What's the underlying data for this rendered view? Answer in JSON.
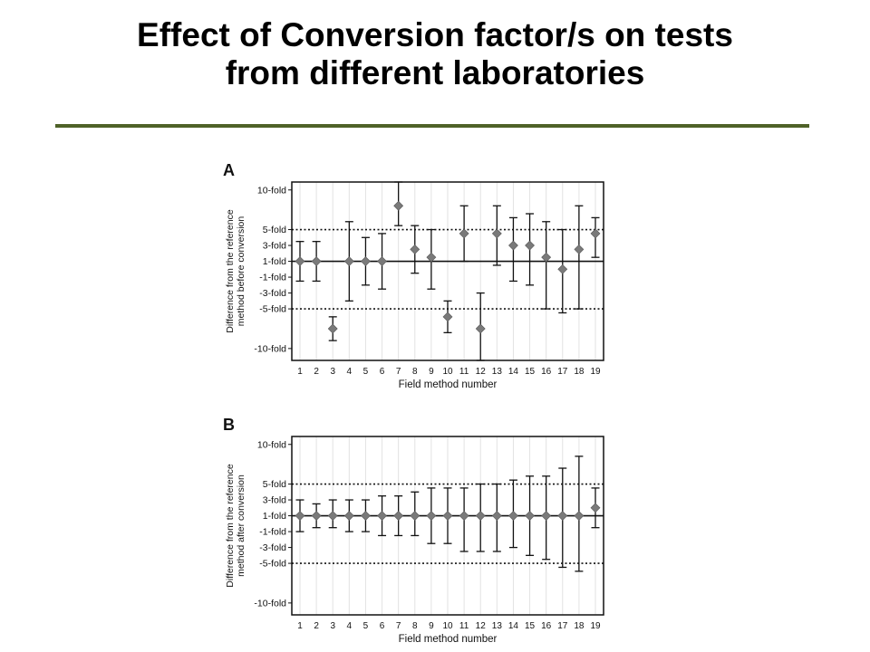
{
  "slide": {
    "title_line1": "Effect of Conversion factor/s on tests",
    "title_line2": "from different laboratories",
    "rule_color": "#4f6228"
  },
  "chart_data": [
    {
      "type": "scatter",
      "panel_label": "A",
      "title": "",
      "xlabel": "Field method number",
      "ylabel": "Difference from the reference method before conversion",
      "ylabel_lines": [
        "Difference from the reference",
        "method before conversion"
      ],
      "x": [
        1,
        2,
        3,
        4,
        5,
        6,
        7,
        8,
        9,
        10,
        11,
        12,
        13,
        14,
        15,
        16,
        17,
        18,
        19
      ],
      "ytick_values": [
        10,
        5,
        3,
        1,
        -1,
        -3,
        -5,
        -10
      ],
      "ytick_labels": [
        "10-fold",
        "5-fold",
        "3-fold",
        "1-fold",
        "-1-fold",
        "-3-fold",
        "-5-fold",
        "-10-fold"
      ],
      "reference_lines": [
        {
          "y": 1,
          "style": "solid"
        },
        {
          "y": 5,
          "style": "dotted"
        },
        {
          "y": -5,
          "style": "dotted"
        }
      ],
      "ylim": [
        -11.5,
        11
      ],
      "grid": true,
      "points": [
        {
          "x": 1,
          "y": 1.0,
          "low": -1.5,
          "high": 3.5
        },
        {
          "x": 2,
          "y": 1.0,
          "low": -1.5,
          "high": 3.5
        },
        {
          "x": 3,
          "y": -7.5,
          "low": -9.0,
          "high": -6.0
        },
        {
          "x": 4,
          "y": 1.0,
          "low": -4.0,
          "high": 6.0
        },
        {
          "x": 5,
          "y": 1.0,
          "low": -2.0,
          "high": 4.0
        },
        {
          "x": 6,
          "y": 1.0,
          "low": -2.5,
          "high": 4.5
        },
        {
          "x": 7,
          "y": 8.0,
          "low": 5.5,
          "high": 11.0
        },
        {
          "x": 8,
          "y": 2.5,
          "low": -0.5,
          "high": 5.5
        },
        {
          "x": 9,
          "y": 1.5,
          "low": -2.5,
          "high": 5.0
        },
        {
          "x": 10,
          "y": -6.0,
          "low": -8.0,
          "high": -4.0
        },
        {
          "x": 11,
          "y": 4.5,
          "low": 1.0,
          "high": 8.0
        },
        {
          "x": 12,
          "y": -7.5,
          "low": -11.5,
          "high": -3.0
        },
        {
          "x": 13,
          "y": 4.5,
          "low": 0.5,
          "high": 8.0
        },
        {
          "x": 14,
          "y": 3.0,
          "low": -1.5,
          "high": 6.5
        },
        {
          "x": 15,
          "y": 3.0,
          "low": -2.0,
          "high": 7.0
        },
        {
          "x": 16,
          "y": 1.5,
          "low": -5.0,
          "high": 6.0
        },
        {
          "x": 17,
          "y": 0.0,
          "low": -5.5,
          "high": 5.0
        },
        {
          "x": 18,
          "y": 2.5,
          "low": -5.0,
          "high": 8.0
        },
        {
          "x": 19,
          "y": 4.5,
          "low": 1.5,
          "high": 6.5
        }
      ]
    },
    {
      "type": "scatter",
      "panel_label": "B",
      "title": "",
      "xlabel": "Field method number",
      "ylabel": "Difference from the reference method after conversion",
      "ylabel_lines": [
        "Difference from the reference",
        "method after conversion"
      ],
      "x": [
        1,
        2,
        3,
        4,
        5,
        6,
        7,
        8,
        9,
        10,
        11,
        12,
        13,
        14,
        15,
        16,
        17,
        18,
        19
      ],
      "ytick_values": [
        10,
        5,
        3,
        1,
        -1,
        -3,
        -5,
        -10
      ],
      "ytick_labels": [
        "10-fold",
        "5-fold",
        "3-fold",
        "1-fold",
        "-1-fold",
        "-3-fold",
        "-5-fold",
        "-10-fold"
      ],
      "reference_lines": [
        {
          "y": 1,
          "style": "solid"
        },
        {
          "y": 5,
          "style": "dotted"
        },
        {
          "y": -5,
          "style": "dotted"
        }
      ],
      "ylim": [
        -11.5,
        11
      ],
      "grid": true,
      "points": [
        {
          "x": 1,
          "y": 1.0,
          "low": -1.0,
          "high": 3.0
        },
        {
          "x": 2,
          "y": 1.0,
          "low": -0.5,
          "high": 2.5
        },
        {
          "x": 3,
          "y": 1.0,
          "low": -0.5,
          "high": 3.0
        },
        {
          "x": 4,
          "y": 1.0,
          "low": -1.0,
          "high": 3.0
        },
        {
          "x": 5,
          "y": 1.0,
          "low": -1.0,
          "high": 3.0
        },
        {
          "x": 6,
          "y": 1.0,
          "low": -1.5,
          "high": 3.5
        },
        {
          "x": 7,
          "y": 1.0,
          "low": -1.5,
          "high": 3.5
        },
        {
          "x": 8,
          "y": 1.0,
          "low": -1.5,
          "high": 4.0
        },
        {
          "x": 9,
          "y": 1.0,
          "low": -2.5,
          "high": 4.5
        },
        {
          "x": 10,
          "y": 1.0,
          "low": -2.5,
          "high": 4.5
        },
        {
          "x": 11,
          "y": 1.0,
          "low": -3.5,
          "high": 4.5
        },
        {
          "x": 12,
          "y": 1.0,
          "low": -3.5,
          "high": 5.0
        },
        {
          "x": 13,
          "y": 1.0,
          "low": -3.5,
          "high": 5.0
        },
        {
          "x": 14,
          "y": 1.0,
          "low": -3.0,
          "high": 5.5
        },
        {
          "x": 15,
          "y": 1.0,
          "low": -4.0,
          "high": 6.0
        },
        {
          "x": 16,
          "y": 1.0,
          "low": -4.5,
          "high": 6.0
        },
        {
          "x": 17,
          "y": 1.0,
          "low": -5.5,
          "high": 7.0
        },
        {
          "x": 18,
          "y": 1.0,
          "low": -6.0,
          "high": 8.5
        },
        {
          "x": 19,
          "y": 2.0,
          "low": -0.5,
          "high": 4.5
        }
      ]
    }
  ],
  "style": {
    "marker_color": "#7a7a7a",
    "line_color": "#111111",
    "grid_color": "#e2e2e2"
  }
}
